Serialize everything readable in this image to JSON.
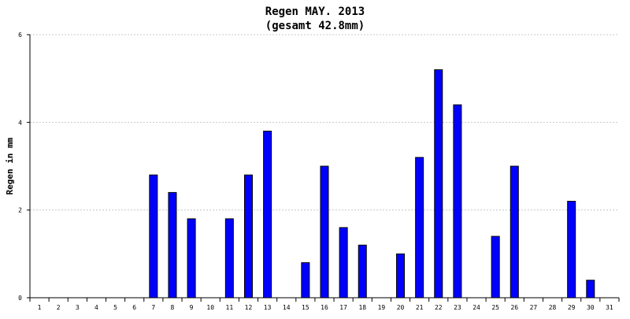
{
  "chart_data": {
    "type": "bar",
    "title": "Regen MAY. 2013",
    "subtitle": "(gesamt 42.8mm)",
    "xlabel": "",
    "ylabel": "Regen in mm",
    "ylim": [
      0,
      6
    ],
    "yticks": [
      0,
      2,
      4,
      6
    ],
    "grid": true,
    "bar_color": "#0000ff",
    "categories": [
      "1",
      "2",
      "3",
      "4",
      "5",
      "6",
      "7",
      "8",
      "9",
      "10",
      "11",
      "12",
      "13",
      "14",
      "15",
      "16",
      "17",
      "18",
      "19",
      "20",
      "21",
      "22",
      "23",
      "24",
      "25",
      "26",
      "27",
      "28",
      "29",
      "30",
      "31"
    ],
    "values": [
      0,
      0,
      0,
      0,
      0,
      0,
      2.8,
      2.4,
      1.8,
      0,
      1.8,
      2.8,
      3.8,
      0,
      0.8,
      3.0,
      1.6,
      1.2,
      0,
      1.0,
      3.2,
      5.2,
      4.4,
      0,
      1.4,
      3.0,
      0,
      0,
      2.2,
      0.4,
      0
    ]
  }
}
